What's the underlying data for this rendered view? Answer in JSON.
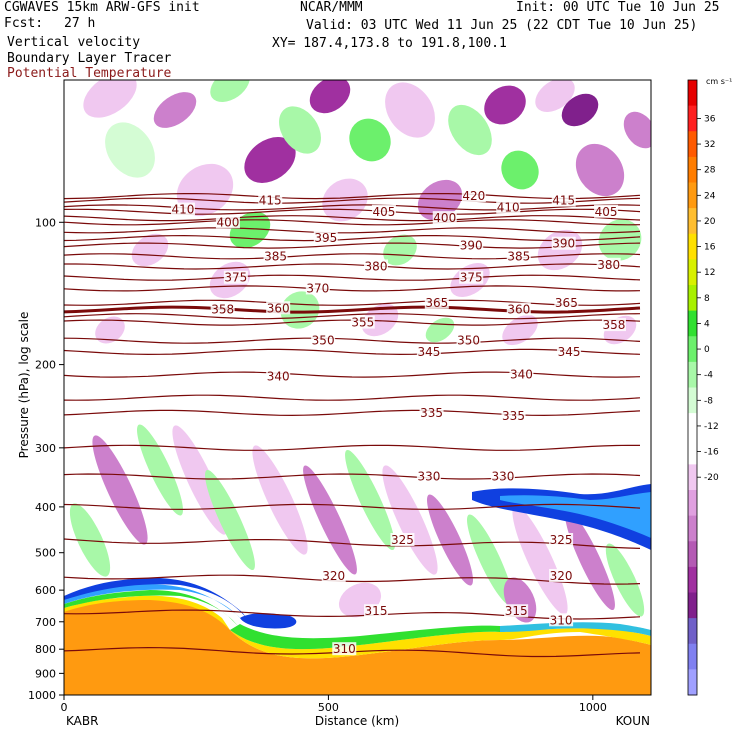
{
  "header": {
    "model": "CGWAVES 15km ARW-GFS init",
    "fcst_label": "Fcst:",
    "fcst_value": "27 h",
    "agency": "NCAR/MMM",
    "init": "Init: 00 UTC Tue 10 Jun 25",
    "valid": "Valid: 03 UTC Wed 11 Jun 25 (22 CDT Tue 10 Jun 25)",
    "xy": "XY= 187.4,173.8 to 191.8,100.1",
    "field1": "Vertical velocity",
    "field2": "Boundary Layer Tracer",
    "field3": "Potential Temperature",
    "field3_color": "#8b1a1a"
  },
  "chart_data": {
    "type": "heatmap",
    "title": "Vertical velocity cross section",
    "xlabel": "Distance (km)",
    "ylabel": "Pressure (hPa), log scale",
    "x_ticks": [
      "0",
      "500",
      "1000"
    ],
    "x_tick_values": [
      0,
      500,
      1000
    ],
    "x_range": [
      0,
      1110
    ],
    "y_ticks": [
      "100",
      "200",
      "300",
      "400",
      "500",
      "600",
      "700",
      "800",
      "900",
      "1000"
    ],
    "y_tick_values": [
      100,
      200,
      300,
      400,
      500,
      600,
      700,
      800,
      900,
      1000
    ],
    "y_range_hpa": [
      1000,
      50
    ],
    "y_scale": "log",
    "left_station": "KABR",
    "right_station": "KOUN",
    "colorbar": {
      "unit": "cm s⁻¹",
      "labels": [
        "36",
        "32",
        "28",
        "24",
        "20",
        "16",
        "12",
        "8",
        "4",
        "0",
        "-4",
        "-8",
        "-12",
        "-16",
        "-20"
      ],
      "colors": [
        "#e60000",
        "#ff2020",
        "#ff5a00",
        "#ff7d00",
        "#ff9a10",
        "#ffbe30",
        "#ffe000",
        "#d8f000",
        "#a8f000",
        "#30e030",
        "#6cf06c",
        "#a8f8a8",
        "#d4fcd4",
        "#ffffff",
        "#ffffff",
        "#f0c8f0",
        "#e0a0e0",
        "#cc80cc",
        "#b45ab4",
        "#a030a0",
        "#80208c",
        "#7060c8",
        "#8080f0",
        "#a0a0ff"
      ]
    },
    "theta_labels": [
      {
        "text": "420",
        "x": 775,
        "p": 88
      },
      {
        "text": "415",
        "x": 390,
        "p": 90
      },
      {
        "text": "415",
        "x": 945,
        "p": 90
      },
      {
        "text": "410",
        "x": 225,
        "p": 94
      },
      {
        "text": "410",
        "x": 840,
        "p": 93
      },
      {
        "text": "405",
        "x": 605,
        "p": 95
      },
      {
        "text": "405",
        "x": 1025,
        "p": 95
      },
      {
        "text": "400",
        "x": 310,
        "p": 100
      },
      {
        "text": "400",
        "x": 720,
        "p": 98
      },
      {
        "text": "395",
        "x": 495,
        "p": 108
      },
      {
        "text": "390",
        "x": 770,
        "p": 112
      },
      {
        "text": "390",
        "x": 945,
        "p": 111
      },
      {
        "text": "385",
        "x": 400,
        "p": 118
      },
      {
        "text": "385",
        "x": 860,
        "p": 118
      },
      {
        "text": "380",
        "x": 590,
        "p": 124
      },
      {
        "text": "380",
        "x": 1030,
        "p": 123
      },
      {
        "text": "375",
        "x": 325,
        "p": 131
      },
      {
        "text": "375",
        "x": 770,
        "p": 131
      },
      {
        "text": "370",
        "x": 480,
        "p": 138
      },
      {
        "text": "365",
        "x": 705,
        "p": 148
      },
      {
        "text": "365",
        "x": 950,
        "p": 148
      },
      {
        "text": "360",
        "x": 405,
        "p": 152
      },
      {
        "text": "360",
        "x": 860,
        "p": 153
      },
      {
        "text": "358",
        "x": 300,
        "p": 153
      },
      {
        "text": "358",
        "x": 1040,
        "p": 165
      },
      {
        "text": "355",
        "x": 565,
        "p": 163
      },
      {
        "text": "350",
        "x": 490,
        "p": 178
      },
      {
        "text": "350",
        "x": 765,
        "p": 178
      },
      {
        "text": "345",
        "x": 690,
        "p": 188
      },
      {
        "text": "345",
        "x": 955,
        "p": 188
      },
      {
        "text": "340",
        "x": 405,
        "p": 212
      },
      {
        "text": "340",
        "x": 865,
        "p": 210
      },
      {
        "text": "335",
        "x": 695,
        "p": 253
      },
      {
        "text": "335",
        "x": 850,
        "p": 257
      },
      {
        "text": "330",
        "x": 690,
        "p": 345
      },
      {
        "text": "330",
        "x": 830,
        "p": 345
      },
      {
        "text": "325",
        "x": 640,
        "p": 470
      },
      {
        "text": "325",
        "x": 940,
        "p": 470
      },
      {
        "text": "320",
        "x": 510,
        "p": 560
      },
      {
        "text": "320",
        "x": 940,
        "p": 560
      },
      {
        "text": "315",
        "x": 590,
        "p": 665
      },
      {
        "text": "315",
        "x": 855,
        "p": 665
      },
      {
        "text": "310",
        "x": 940,
        "p": 695
      },
      {
        "text": "310",
        "x": 530,
        "p": 800
      }
    ]
  }
}
